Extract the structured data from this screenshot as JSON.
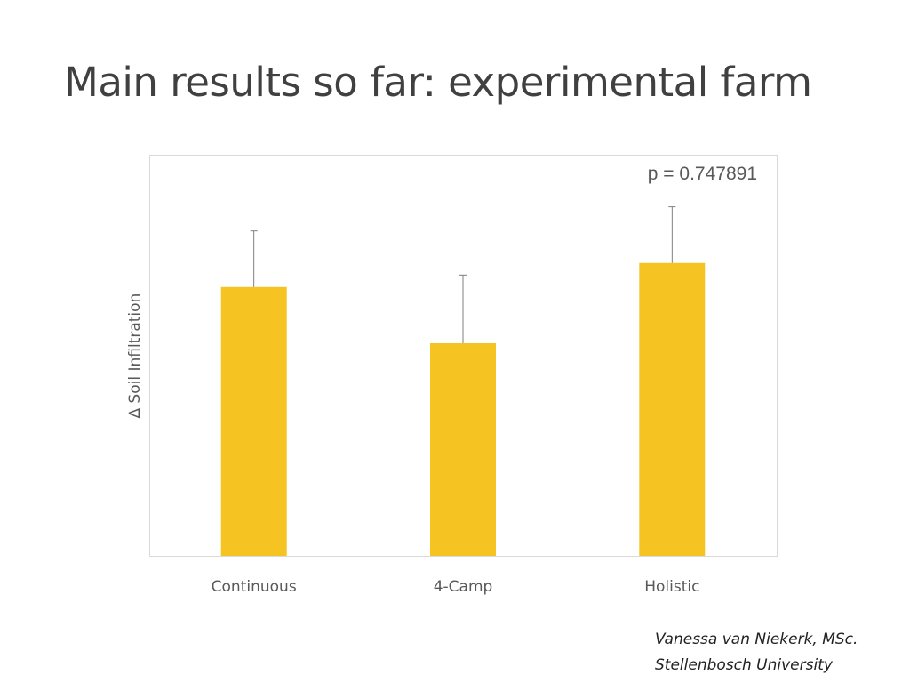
{
  "slide": {
    "title": "Main results so far: experimental farm",
    "credit_line1": "Vanessa van Niekerk, MSc.",
    "credit_line2": "Stellenbosch University"
  },
  "chart_data": {
    "type": "bar",
    "title": "",
    "xlabel": "",
    "ylabel": "∆ Soil Infiltration",
    "annotation": "p = 0.747891",
    "categories": [
      "Continuous",
      "4-Camp",
      "Holistic"
    ],
    "values": [
      0.67,
      0.53,
      0.73
    ],
    "error": [
      0.14,
      0.17,
      0.14
    ],
    "ylim": [
      0,
      1
    ],
    "grid": false,
    "bar_color": "#F5C322",
    "error_bar_color": "#7f7f7f",
    "axis_color": "#d9d9d9"
  }
}
